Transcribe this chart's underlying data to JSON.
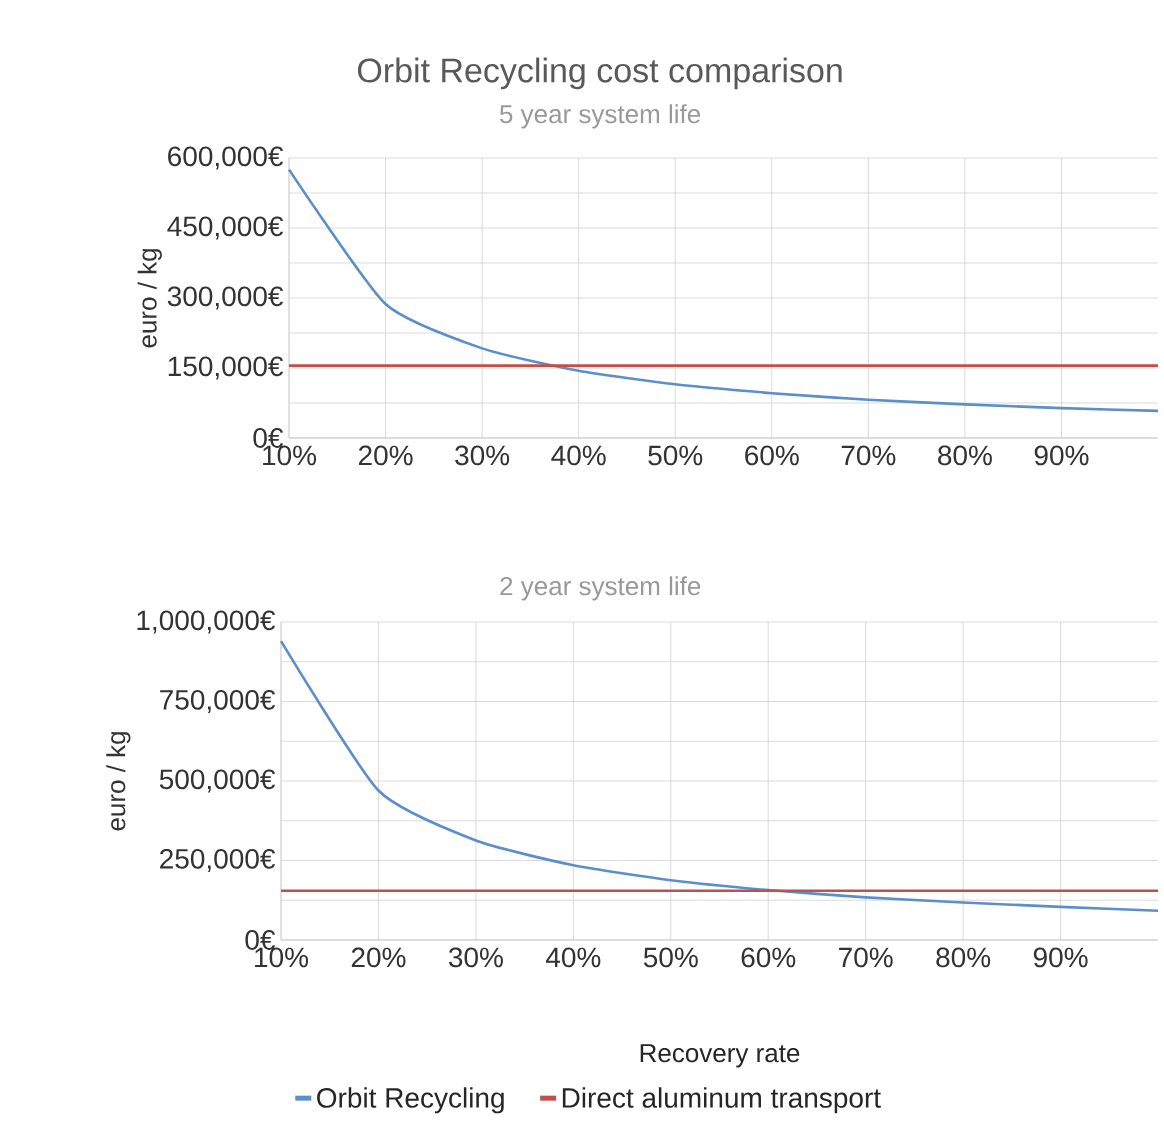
{
  "chart_data": [
    {
      "type": "line",
      "title": "Orbit Recycling cost comparison",
      "subtitle": "5 year system life",
      "ylabel": "euro / kg",
      "x": [
        10,
        20,
        30,
        40,
        50,
        60,
        70,
        80,
        90,
        100
      ],
      "series": [
        {
          "color": "#5b8fc9",
          "values": [
            575000,
            287000,
            192000,
            144000,
            115000,
            96000,
            82000,
            72000,
            64000,
            58000
          ]
        },
        {
          "color": "#c0504d",
          "values": [
            155000,
            155000,
            155000,
            155000,
            155000,
            155000,
            155000,
            155000,
            155000,
            155000
          ]
        }
      ],
      "xlim": [
        10,
        100
      ],
      "xticks": [
        {
          "value": 10,
          "label": "10%"
        },
        {
          "value": 20,
          "label": "20%"
        },
        {
          "value": 30,
          "label": "30%"
        },
        {
          "value": 40,
          "label": "40%"
        },
        {
          "value": 50,
          "label": "50%"
        },
        {
          "value": 60,
          "label": "60%"
        },
        {
          "value": 70,
          "label": "70%"
        },
        {
          "value": 80,
          "label": "80%"
        },
        {
          "value": 90,
          "label": "90%"
        }
      ],
      "ylim": [
        0,
        600000
      ],
      "yticks": [
        {
          "value": 0,
          "label": "0€"
        },
        {
          "value": 75000,
          "label": null
        },
        {
          "value": 150000,
          "label": "150,000€"
        },
        {
          "value": 225000,
          "label": null
        },
        {
          "value": 300000,
          "label": "300,000€"
        },
        {
          "value": 375000,
          "label": null
        },
        {
          "value": 450000,
          "label": "450,000€"
        },
        {
          "value": 525000,
          "label": null
        },
        {
          "value": 600000,
          "label": "600,000€"
        }
      ],
      "grid": true
    },
    {
      "type": "line",
      "title": "2 year system life",
      "xlabel": "Recovery rate",
      "ylabel": "euro / kg",
      "x": [
        10,
        20,
        30,
        40,
        50,
        60,
        70,
        80,
        90,
        100
      ],
      "series": [
        {
          "name": "Orbit Recycling",
          "color": "#5b8fc9",
          "values": [
            940000,
            470000,
            313000,
            235000,
            188000,
            157000,
            134000,
            118000,
            104000,
            92000
          ]
        },
        {
          "name": "Direct aluminum transport",
          "color": "#c0504d",
          "values": [
            155000,
            155000,
            155000,
            155000,
            155000,
            155000,
            155000,
            155000,
            155000,
            155000
          ]
        }
      ],
      "xlim": [
        10,
        100
      ],
      "xticks": [
        {
          "value": 10,
          "label": "10%"
        },
        {
          "value": 20,
          "label": "20%"
        },
        {
          "value": 30,
          "label": "30%"
        },
        {
          "value": 40,
          "label": "40%"
        },
        {
          "value": 50,
          "label": "50%"
        },
        {
          "value": 60,
          "label": "60%"
        },
        {
          "value": 70,
          "label": "70%"
        },
        {
          "value": 80,
          "label": "80%"
        },
        {
          "value": 90,
          "label": "90%"
        }
      ],
      "ylim": [
        0,
        1000000
      ],
      "yticks": [
        {
          "value": 0,
          "label": "0€"
        },
        {
          "value": 125000,
          "label": null
        },
        {
          "value": 250000,
          "label": "250,000€"
        },
        {
          "value": 375000,
          "label": null
        },
        {
          "value": 500000,
          "label": "500,000€"
        },
        {
          "value": 625000,
          "label": null
        },
        {
          "value": 750000,
          "label": "750,000€"
        },
        {
          "value": 875000,
          "label": null
        },
        {
          "value": 1000000,
          "label": "1,000,000€"
        }
      ],
      "grid": true,
      "legend": "bottom"
    }
  ]
}
